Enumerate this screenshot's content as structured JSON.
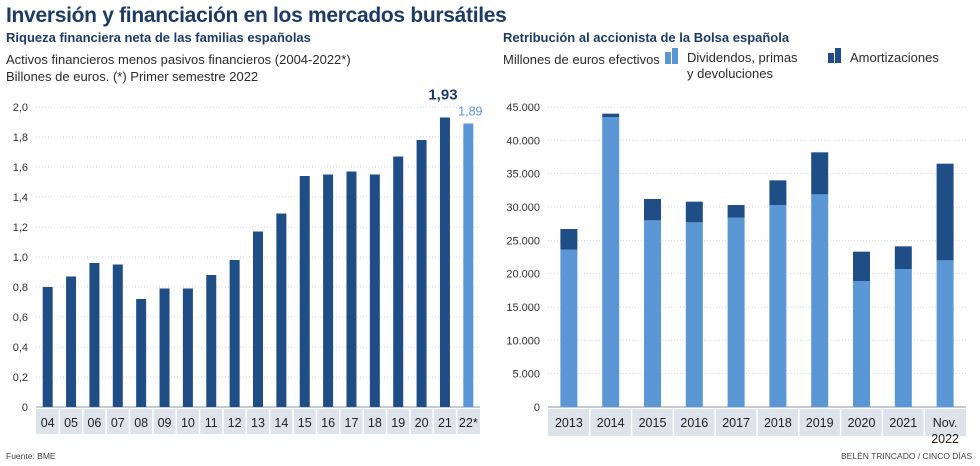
{
  "title": "Inversión y financiación en los mercados bursátiles",
  "left_chart": {
    "subtitle": "Riqueza financiera neta de las familias españolas",
    "note_line1": "Activos financieros menos pasivos financieros (2004-2022*)",
    "note_line2": "Billones de euros. (*) Primer semestre 2022"
  },
  "right_chart": {
    "subtitle": "Retribución al accionista de la Bolsa española",
    "note_line1": "Millones de euros efectivos",
    "legend_dividends_1": "Dividendos, primas",
    "legend_dividends_2": "y devoluciones",
    "legend_amortizations": "Amortizaciones"
  },
  "footer": {
    "source": "Fuente: BME",
    "credit": "BELÉN TRINCADO / CINCO DÍAS"
  },
  "colors": {
    "dark_blue": "#1f4e86",
    "light_blue": "#5b97d5",
    "axis_bg": "#dde3ea",
    "title": "#1c3b66"
  },
  "chart_data": [
    {
      "type": "bar",
      "title": "Riqueza financiera neta de las familias españolas",
      "categories": [
        "04",
        "05",
        "06",
        "07",
        "08",
        "09",
        "10",
        "11",
        "12",
        "13",
        "14",
        "15",
        "16",
        "17",
        "18",
        "19",
        "20",
        "21",
        "22*"
      ],
      "values": [
        0.8,
        0.87,
        0.96,
        0.95,
        0.72,
        0.79,
        0.79,
        0.88,
        0.98,
        1.17,
        1.29,
        1.54,
        1.55,
        1.57,
        1.55,
        1.67,
        1.78,
        1.93,
        1.89
      ],
      "highlight_labels": [
        {
          "index": 17,
          "text": "1,93"
        },
        {
          "index": 18,
          "text": "1,89"
        }
      ],
      "ylim": [
        0,
        2.0
      ],
      "yticks": [
        "0",
        "0,2",
        "0,4",
        "0,6",
        "0,8",
        "1,0",
        "1,2",
        "1,4",
        "1,6",
        "1,8",
        "2,0"
      ],
      "ylabel": "Billones de euros"
    },
    {
      "type": "bar",
      "stacked": true,
      "title": "Retribución al accionista de la Bolsa española",
      "categories": [
        "2013",
        "2014",
        "2015",
        "2016",
        "2017",
        "2018",
        "2019",
        "2020",
        "2021",
        "Nov. 2022"
      ],
      "series": [
        {
          "name": "Dividendos, primas y devoluciones",
          "values": [
            23600,
            43500,
            28000,
            27700,
            28400,
            30300,
            31900,
            18900,
            20700,
            22000
          ]
        },
        {
          "name": "Amortizaciones",
          "values": [
            3100,
            500,
            3200,
            3100,
            1900,
            3700,
            6300,
            4400,
            3400,
            14500
          ]
        }
      ],
      "ylim": [
        0,
        45000
      ],
      "yticks": [
        "0",
        "5.000",
        "10.000",
        "15.000",
        "20.000",
        "25.000",
        "30.000",
        "35.000",
        "40.000",
        "45.000"
      ],
      "ylabel": "Millones de euros efectivos"
    }
  ]
}
